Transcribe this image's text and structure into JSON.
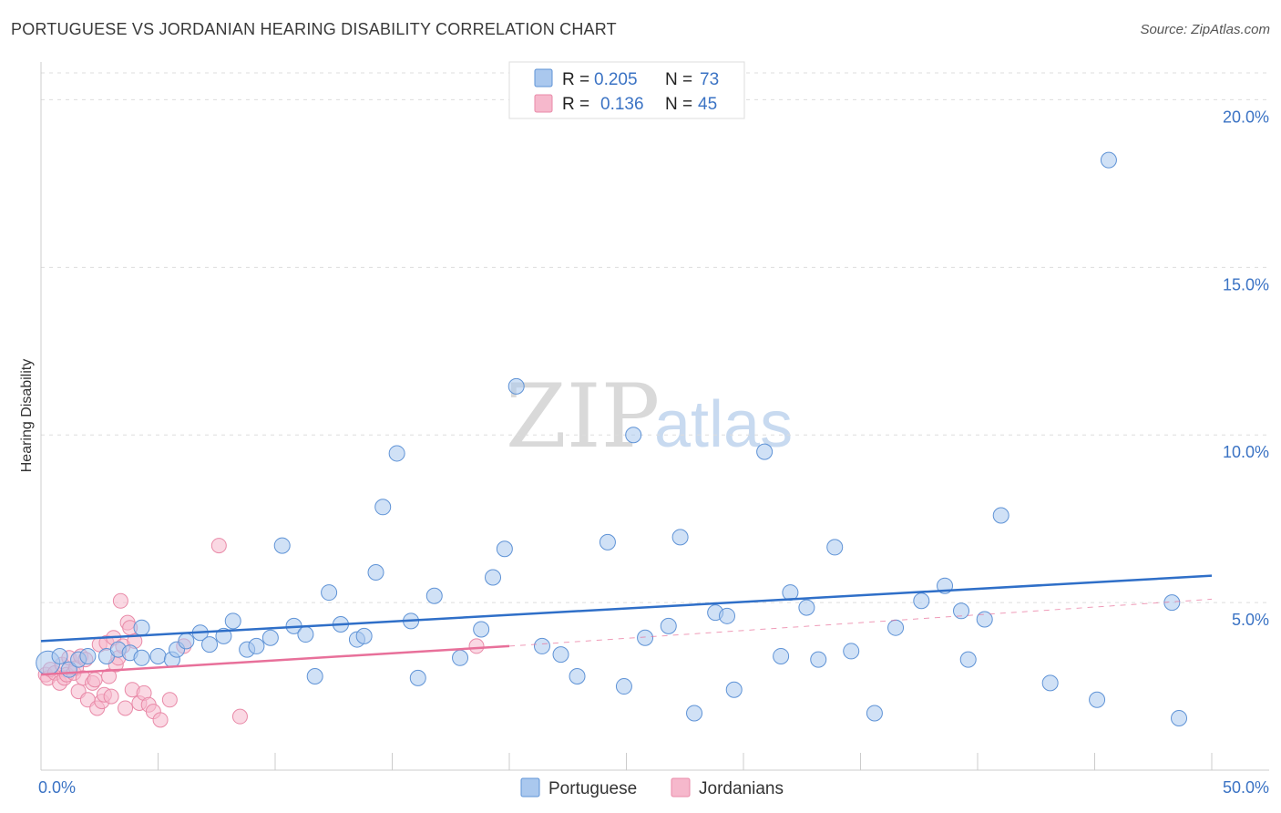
{
  "header": {
    "title": "PORTUGUESE VS JORDANIAN HEARING DISABILITY CORRELATION CHART",
    "source": "Source: ZipAtlas.com"
  },
  "watermark": {
    "zip": "ZIP",
    "atlas": "atlas"
  },
  "legend": {
    "r_label": "R =",
    "n_label": "N =",
    "portuguese": {
      "r": "0.205",
      "n": "73"
    },
    "jordanians": {
      "r": "0.136",
      "n": "45"
    }
  },
  "bottom_legend": {
    "portuguese": "Portuguese",
    "jordanians": "Jordanians"
  },
  "colors": {
    "portuguese_fill": "#aac8ee",
    "portuguese_stroke": "#5f93d6",
    "portuguese_line": "#2f6fc8",
    "jordanians_fill": "#f6b8cc",
    "jordanians_stroke": "#e98aa8",
    "jordanians_line": "#e8709a",
    "grid": "#dddddd",
    "tick_text": "#3b73c4"
  },
  "chart_data": {
    "type": "scatter",
    "title": "PORTUGUESE VS JORDANIAN HEARING DISABILITY CORRELATION CHART",
    "xlabel": "",
    "ylabel": "Hearing Disability",
    "xlim": [
      0,
      50
    ],
    "ylim": [
      0,
      20.8
    ],
    "x_tick_labels": [
      "0.0%",
      "50.0%"
    ],
    "y_ticks": [
      5,
      10,
      15,
      20
    ],
    "y_tick_labels": [
      "5.0%",
      "10.0%",
      "15.0%",
      "20.0%"
    ],
    "series": [
      {
        "name": "Portuguese",
        "r": 0.205,
        "n": 73,
        "trend": {
          "x": [
            0,
            50
          ],
          "y": [
            3.85,
            5.8
          ]
        },
        "points": [
          [
            0.3,
            3.2
          ],
          [
            0.8,
            3.4
          ],
          [
            1.2,
            3.0
          ],
          [
            1.6,
            3.3
          ],
          [
            2.0,
            3.4
          ],
          [
            2.8,
            3.4
          ],
          [
            3.3,
            3.6
          ],
          [
            3.8,
            3.5
          ],
          [
            4.3,
            3.35
          ],
          [
            4.3,
            4.25
          ],
          [
            5.0,
            3.4
          ],
          [
            5.6,
            3.3
          ],
          [
            5.8,
            3.6
          ],
          [
            6.2,
            3.85
          ],
          [
            6.8,
            4.1
          ],
          [
            7.2,
            3.75
          ],
          [
            7.8,
            4.0
          ],
          [
            8.2,
            4.45
          ],
          [
            8.8,
            3.6
          ],
          [
            9.2,
            3.7
          ],
          [
            9.8,
            3.95
          ],
          [
            10.3,
            6.7
          ],
          [
            10.8,
            4.3
          ],
          [
            11.3,
            4.05
          ],
          [
            11.7,
            2.8
          ],
          [
            12.3,
            5.3
          ],
          [
            12.8,
            4.35
          ],
          [
            13.5,
            3.9
          ],
          [
            13.8,
            4.0
          ],
          [
            14.3,
            5.9
          ],
          [
            14.6,
            7.85
          ],
          [
            15.2,
            9.45
          ],
          [
            15.8,
            4.45
          ],
          [
            16.1,
            2.75
          ],
          [
            16.8,
            5.2
          ],
          [
            17.9,
            3.35
          ],
          [
            18.8,
            4.2
          ],
          [
            19.3,
            5.75
          ],
          [
            19.8,
            6.6
          ],
          [
            20.3,
            11.45
          ],
          [
            21.4,
            3.7
          ],
          [
            22.2,
            3.45
          ],
          [
            22.9,
            2.8
          ],
          [
            24.2,
            6.8
          ],
          [
            24.9,
            2.5
          ],
          [
            25.3,
            10.0
          ],
          [
            25.8,
            3.95
          ],
          [
            26.8,
            4.3
          ],
          [
            27.3,
            6.95
          ],
          [
            27.9,
            1.7
          ],
          [
            28.8,
            4.7
          ],
          [
            29.3,
            4.6
          ],
          [
            29.6,
            2.4
          ],
          [
            30.9,
            9.5
          ],
          [
            31.6,
            3.4
          ],
          [
            32.0,
            5.3
          ],
          [
            32.7,
            4.85
          ],
          [
            33.2,
            3.3
          ],
          [
            33.9,
            6.65
          ],
          [
            34.6,
            3.55
          ],
          [
            35.6,
            1.7
          ],
          [
            36.5,
            4.25
          ],
          [
            37.6,
            5.05
          ],
          [
            38.6,
            5.5
          ],
          [
            39.3,
            4.75
          ],
          [
            39.6,
            3.3
          ],
          [
            40.3,
            4.5
          ],
          [
            41.0,
            7.6
          ],
          [
            43.1,
            2.6
          ],
          [
            45.1,
            2.1
          ],
          [
            45.6,
            18.2
          ],
          [
            48.3,
            5.0
          ],
          [
            48.6,
            1.55
          ]
        ]
      },
      {
        "name": "Jordanians",
        "r": 0.136,
        "n": 45,
        "trend": {
          "x": [
            0,
            20
          ],
          "y": [
            2.85,
            3.7
          ]
        },
        "trend_extension": {
          "x": [
            20,
            50
          ],
          "y": [
            3.7,
            5.1
          ]
        },
        "points": [
          [
            0.2,
            2.85
          ],
          [
            0.3,
            2.75
          ],
          [
            0.4,
            3.0
          ],
          [
            0.6,
            2.9
          ],
          [
            0.8,
            2.6
          ],
          [
            0.9,
            3.15
          ],
          [
            1.0,
            2.75
          ],
          [
            1.1,
            2.85
          ],
          [
            1.2,
            3.35
          ],
          [
            1.4,
            2.9
          ],
          [
            1.5,
            3.05
          ],
          [
            1.6,
            2.35
          ],
          [
            1.7,
            3.4
          ],
          [
            1.8,
            2.75
          ],
          [
            1.9,
            3.3
          ],
          [
            2.0,
            2.1
          ],
          [
            2.2,
            2.6
          ],
          [
            2.3,
            2.7
          ],
          [
            2.4,
            1.85
          ],
          [
            2.5,
            3.75
          ],
          [
            2.6,
            2.05
          ],
          [
            2.7,
            2.25
          ],
          [
            2.8,
            3.8
          ],
          [
            2.9,
            2.8
          ],
          [
            3.0,
            2.2
          ],
          [
            3.1,
            3.95
          ],
          [
            3.2,
            3.15
          ],
          [
            3.3,
            3.35
          ],
          [
            3.4,
            5.05
          ],
          [
            3.5,
            3.7
          ],
          [
            3.6,
            1.85
          ],
          [
            3.7,
            4.4
          ],
          [
            3.8,
            4.25
          ],
          [
            3.9,
            2.4
          ],
          [
            4.0,
            3.85
          ],
          [
            4.2,
            2.0
          ],
          [
            4.4,
            2.3
          ],
          [
            4.6,
            1.95
          ],
          [
            4.8,
            1.75
          ],
          [
            5.1,
            1.5
          ],
          [
            5.5,
            2.1
          ],
          [
            6.1,
            3.7
          ],
          [
            7.6,
            6.7
          ],
          [
            8.5,
            1.6
          ],
          [
            18.6,
            3.7
          ]
        ]
      }
    ]
  }
}
